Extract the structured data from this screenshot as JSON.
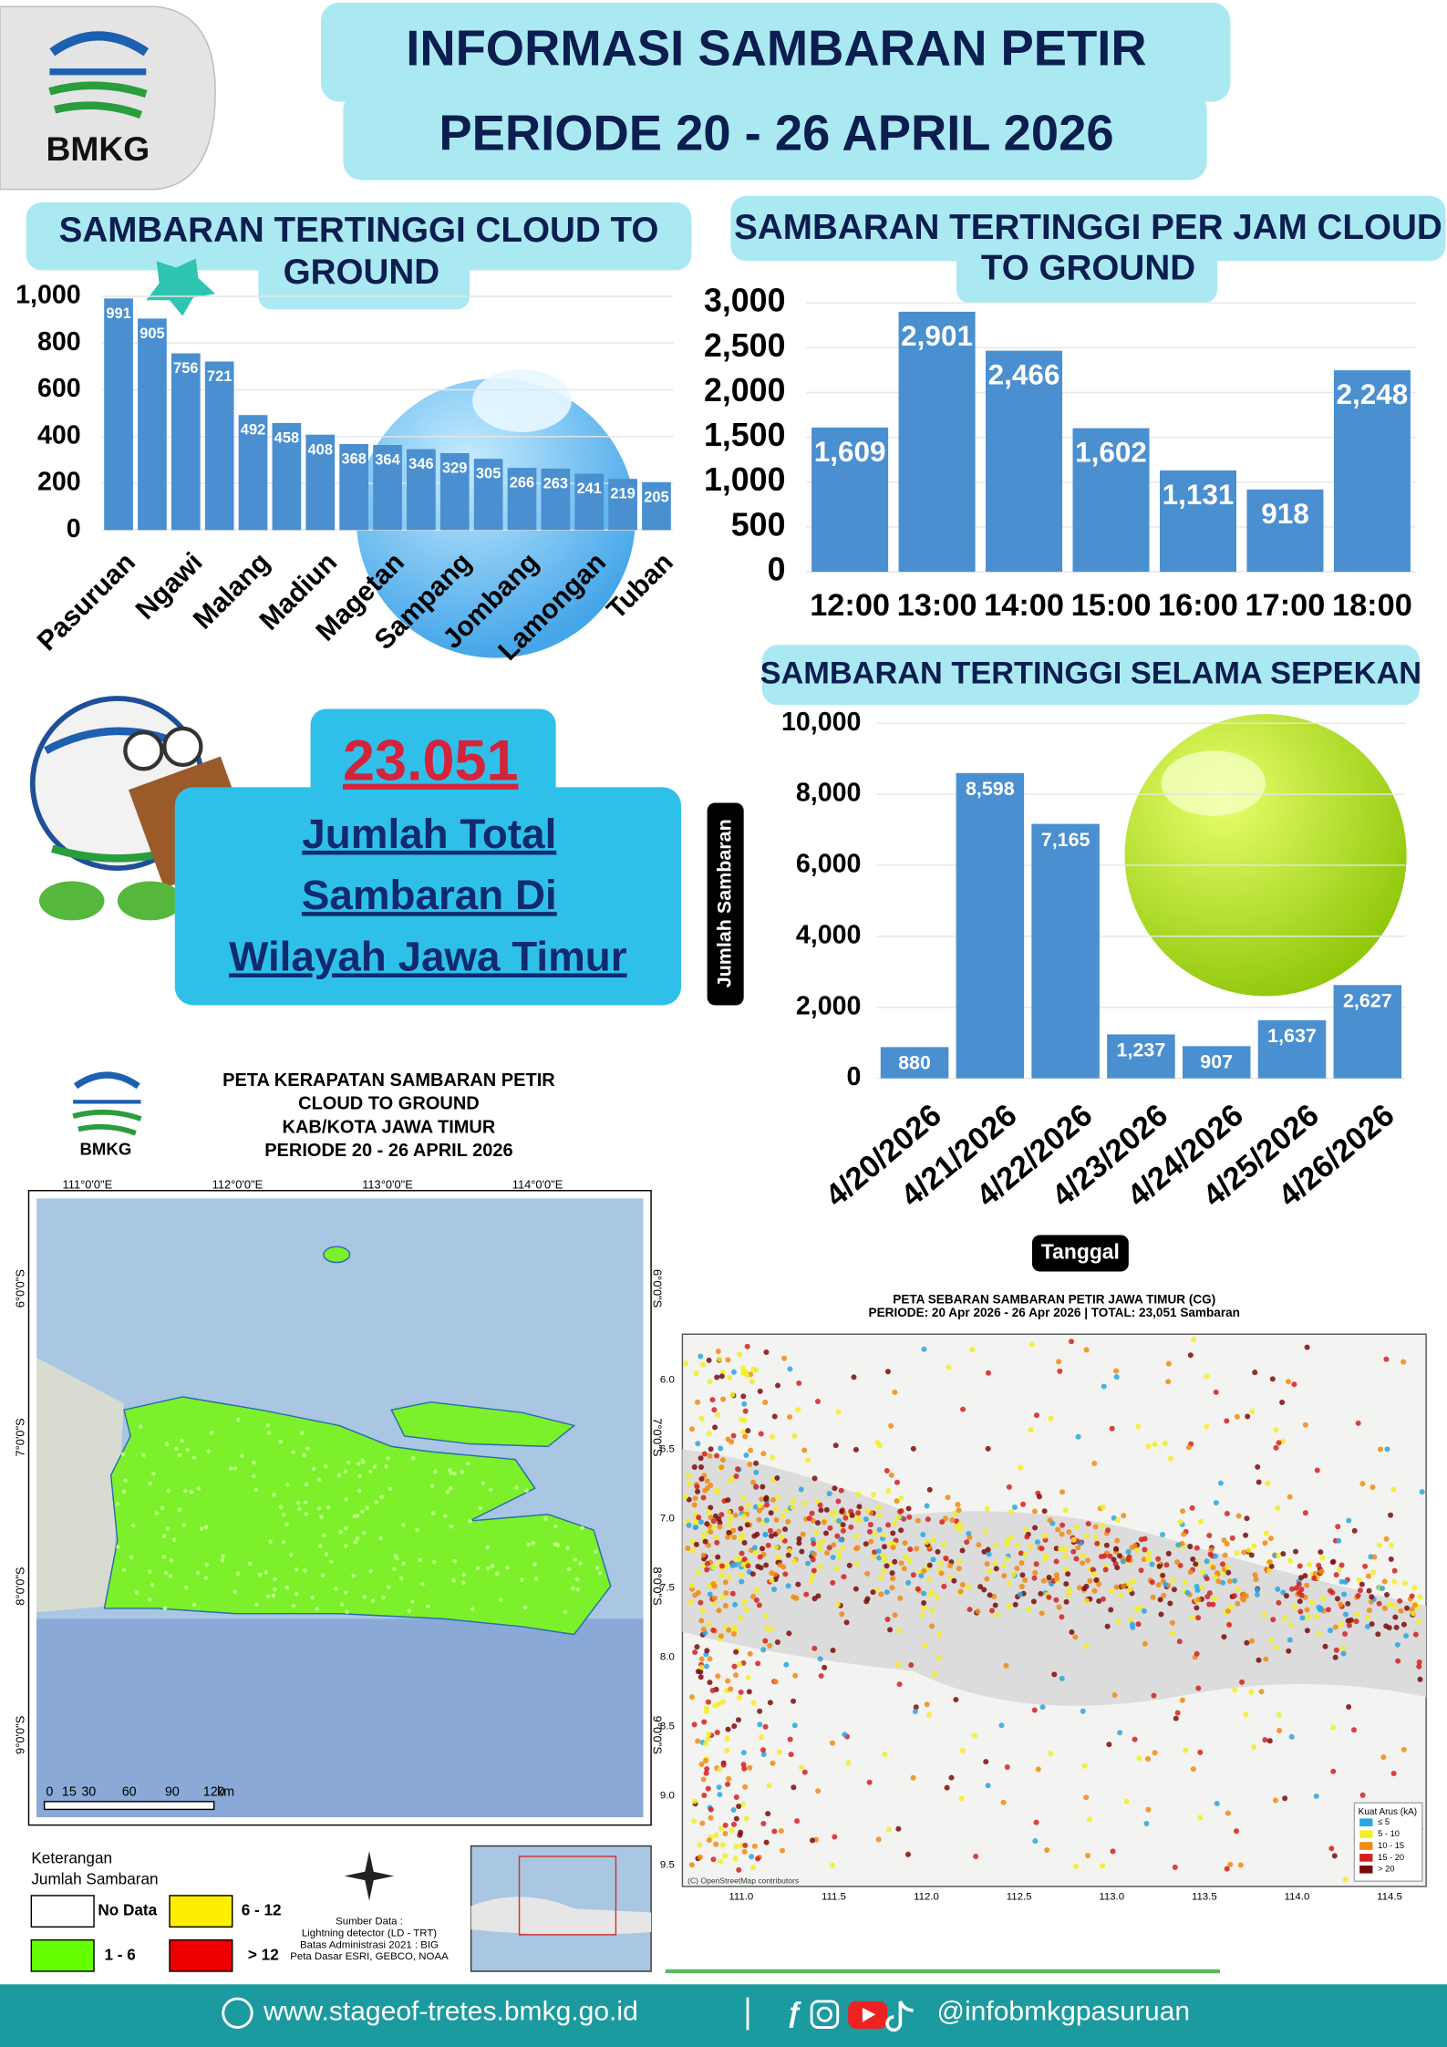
{
  "header": {
    "logo": "BMKG",
    "title": [
      "INFORMASI SAMBARAN PETIR",
      "PERIODE 20 - 26 APRIL 2026"
    ]
  },
  "chart_data": [
    {
      "type": "bar",
      "title": [
        "SAMBARAN TERTINGGI  CLOUD TO",
        "GROUND"
      ],
      "categories": [
        "Pasuruan",
        null,
        "Ngawi",
        null,
        "Malang",
        null,
        "Madiun",
        null,
        "Magetan",
        null,
        "Sampang",
        null,
        "Jombang",
        null,
        "Lamongan",
        null,
        "Tuban"
      ],
      "values": [
        991,
        905,
        756,
        721,
        492,
        458,
        408,
        368,
        364,
        346,
        329,
        305,
        266,
        263,
        241,
        219,
        205
      ],
      "color": "#4a8fd0",
      "ylim": [
        0,
        1000
      ],
      "yticks": [
        0,
        200,
        400,
        600,
        800,
        {
          "value": 1000,
          "label": "1,000"
        }
      ],
      "grid": true
    },
    {
      "type": "bar",
      "title": [
        "SAMBARAN TERTINGGI PER JAM CLOUD",
        "TO GROUND"
      ],
      "categories": [
        "12:00",
        "13:00",
        "14:00",
        "15:00",
        "16:00",
        "17:00",
        "18:00"
      ],
      "values": [
        1609,
        2901,
        2466,
        1602,
        1131,
        918,
        2248
      ],
      "value_labels": [
        "1,609",
        "2,901",
        "2,466",
        "1,602",
        "1,131",
        "918",
        "2,248"
      ],
      "color": "#4a8fd0",
      "ylim": [
        0,
        3000
      ],
      "yticks": [
        0,
        500,
        {
          "value": 1000,
          "label": "1,000"
        },
        {
          "value": 1500,
          "label": "1,500"
        },
        {
          "value": 2000,
          "label": "2,000"
        },
        {
          "value": 2500,
          "label": "2,500"
        },
        {
          "value": 3000,
          "label": "3,000"
        }
      ],
      "grid": true
    },
    {
      "type": "bar",
      "title": [
        "SAMBARAN TERTINGGI SELAMA SEPEKAN"
      ],
      "x_label": "Tanggal",
      "y_label": "Jumlah Sambaran",
      "categories": [
        "4/20/2026",
        "4/21/2026",
        "4/22/2026",
        "4/23/2026",
        "4/24/2026",
        "4/25/2026",
        "4/26/2026"
      ],
      "values": [
        880,
        8598,
        7165,
        1237,
        907,
        1637,
        2627
      ],
      "value_labels": [
        "880",
        "8,598",
        "7,165",
        "1,237",
        "907",
        "1,637",
        "2,627"
      ],
      "color": "#4a8fd0",
      "ylim": [
        0,
        10000
      ],
      "yticks": [
        0,
        {
          "value": 2000,
          "label": "2,000"
        },
        {
          "value": 4000,
          "label": "4,000"
        },
        {
          "value": 6000,
          "label": "6,000"
        },
        {
          "value": 8000,
          "label": "8,000"
        },
        {
          "value": 10000,
          "label": "10,000"
        }
      ],
      "grid": true
    }
  ],
  "total": {
    "value": "23.051",
    "lines": [
      "Jumlah Total",
      "Sambaran Di",
      "Wilayah Jawa Timur"
    ]
  },
  "density_map": {
    "logo": "BMKG",
    "title": [
      "PETA KERAPATAN SAMBARAN PETIR",
      "CLOUD TO GROUND",
      "KAB/KOTA JAWA TIMUR",
      "PERIODE 20 - 26 APRIL 2026"
    ],
    "lon_labels": [
      "111°0'0\"E",
      "112°0'0\"E",
      "113°0'0\"E",
      "114°0'0\"E"
    ],
    "lat_labels": [
      "6°0'0\"S",
      "7°0'0\"S",
      "8°0'0\"S",
      "9°0'0\"S"
    ],
    "scale_labels": [
      "0",
      "15",
      "30",
      "60",
      "90",
      "120",
      "km"
    ],
    "legend_title": [
      "Keterangan",
      "Jumlah Sambaran"
    ],
    "legend": [
      {
        "label": "No Data",
        "color": "#ffffff"
      },
      {
        "label": "6 - 12",
        "color": "#ffee00"
      },
      {
        "label": "1 - 6",
        "color": "#66ff00"
      },
      {
        "label": "> 12",
        "color": "#ee0000"
      }
    ],
    "source": [
      "Sumber Data :",
      "Lightning detector (LD - TRT)",
      "Batas Administrasi 2021  : BIG",
      "Peta Dasar ESRI, GEBCO, NOAA"
    ]
  },
  "scatter_map": {
    "title": [
      "PETA SEBARAN SAMBARAN PETIR JAWA TIMUR (CG)",
      "PERIODE: 20 Apr 2026 - 26 Apr 2026 | TOTAL: 23,051 Sambaran"
    ],
    "lat_ticks": [
      "6.0",
      "6.5",
      "7.0",
      "7.5",
      "8.0",
      "8.5",
      "9.0",
      "9.5"
    ],
    "lon_ticks": [
      "111.0",
      "111.5",
      "112.0",
      "112.5",
      "113.0",
      "113.5",
      "114.0",
      "114.5"
    ],
    "legend_title": "Kuat Arus (kA)",
    "legend": [
      {
        "label": "≤ 5",
        "color": "#2aa6e0"
      },
      {
        "label": "5 - 10",
        "color": "#f2ee20"
      },
      {
        "label": "10 - 15",
        "color": "#f08a10"
      },
      {
        "label": "15 - 20",
        "color": "#d42020"
      },
      {
        "label": "> 20",
        "color": "#7a0a0a"
      }
    ],
    "credit": "(C) OpenStreetMap contributors"
  },
  "footer": {
    "website": "www.stageof-tretes.bmkg.go.id",
    "social": "@infobmkgpasuruan"
  }
}
